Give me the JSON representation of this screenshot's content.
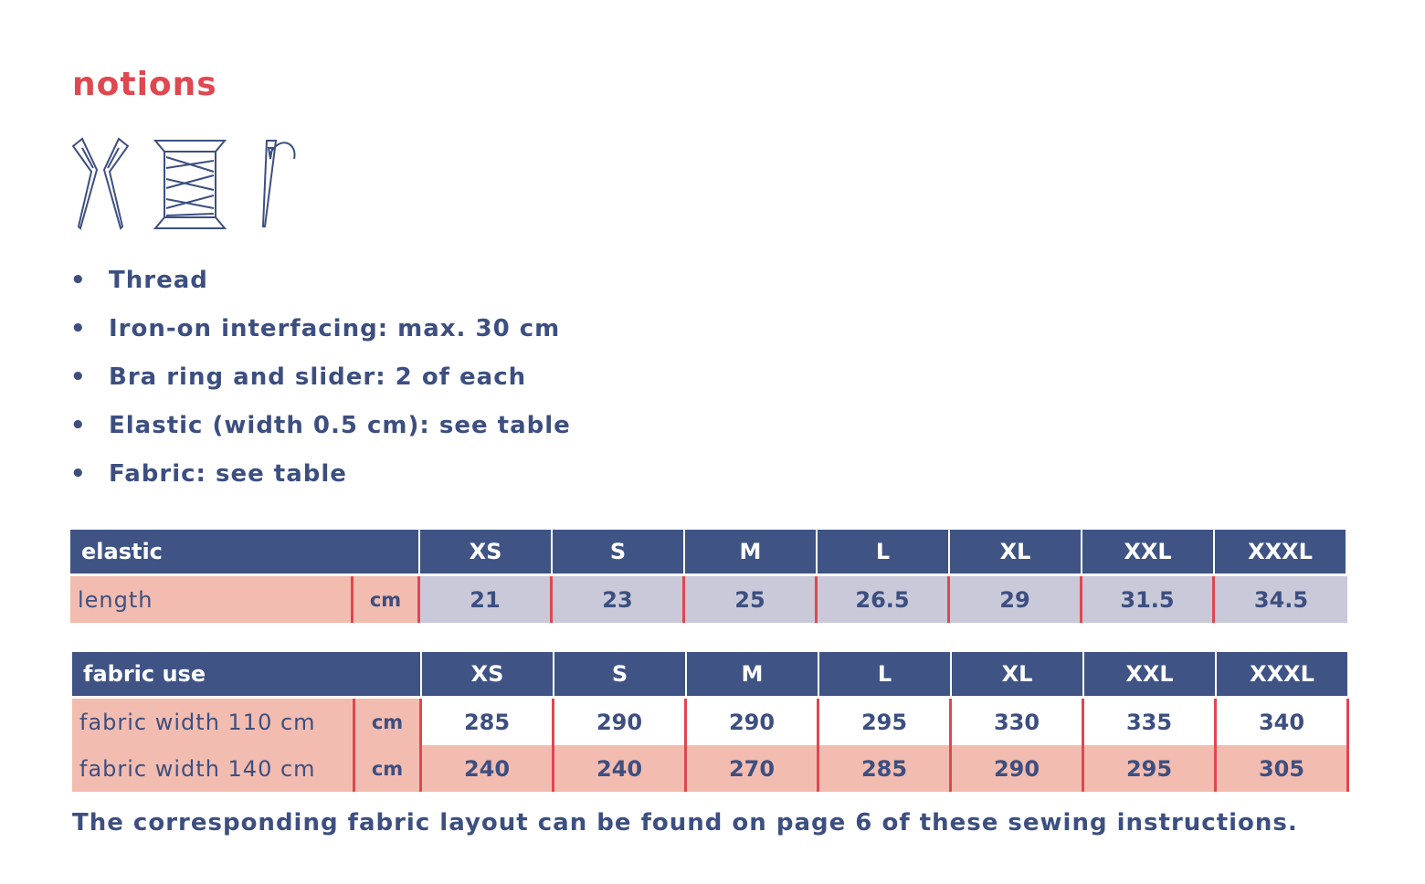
{
  "title": "notions",
  "items": [
    "Thread",
    "Iron-on interfacing: max. 30 cm",
    "Bra ring and slider: 2 of each",
    "Elastic (width 0.5 cm): see table",
    "Fabric: see table"
  ],
  "elastic_table": {
    "header": [
      "elastic",
      "XS",
      "S",
      "M",
      "L",
      "XL",
      "XXL",
      "XXXL"
    ],
    "rows": [
      [
        "length",
        "cm",
        "21",
        "23",
        "25",
        "26.5",
        "29",
        "31.5",
        "34.5"
      ]
    ]
  },
  "fabric_table": {
    "header": [
      "fabric use",
      "XS",
      "S",
      "M",
      "L",
      "XL",
      "XXL",
      "XXXL"
    ],
    "rows": [
      [
        "fabric width 110 cm",
        "cm",
        "285",
        "290",
        "290",
        "295",
        "330",
        "335",
        "340"
      ],
      [
        "fabric width 140 cm",
        "cm",
        "240",
        "240",
        "270",
        "285",
        "290",
        "295",
        "305"
      ]
    ]
  },
  "note": "The corresponding fabric layout can be found on page 6 of these sewing instructions."
}
